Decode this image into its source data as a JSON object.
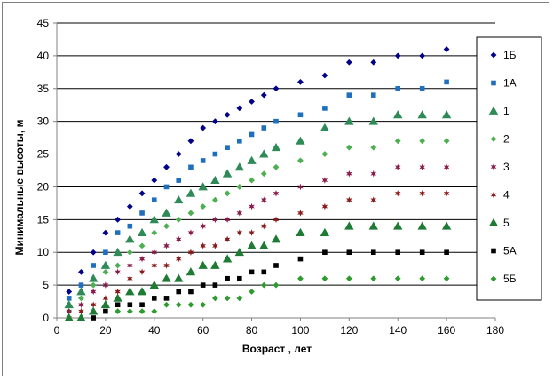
{
  "chart_data": {
    "type": "scatter",
    "xlabel": "Возраст , лет",
    "ylabel": "Минимальные высоты, м",
    "xlim": [
      0,
      180
    ],
    "ylim": [
      0,
      45
    ],
    "x_ticks": [
      0,
      20,
      40,
      60,
      80,
      100,
      120,
      140,
      160,
      180
    ],
    "y_ticks": [
      0,
      5,
      10,
      15,
      20,
      25,
      30,
      35,
      40,
      45
    ],
    "grid": "horizontal",
    "legend_position": "right",
    "series": [
      {
        "name": "1Б",
        "color": "#00008b",
        "marker": "diamond",
        "x": [
          5,
          10,
          15,
          20,
          25,
          30,
          35,
          40,
          45,
          50,
          55,
          60,
          65,
          70,
          75,
          80,
          85,
          90,
          100,
          110,
          120,
          130,
          140,
          150,
          160
        ],
        "y": [
          4,
          7,
          10,
          13,
          15,
          17,
          19,
          21,
          23,
          25,
          27,
          29,
          30,
          31,
          32,
          33,
          34,
          35,
          36,
          37,
          39,
          39,
          40,
          40,
          41
        ]
      },
      {
        "name": "1А",
        "color": "#1f6fbf",
        "marker": "square",
        "x": [
          5,
          10,
          15,
          20,
          25,
          30,
          35,
          40,
          45,
          50,
          55,
          60,
          65,
          70,
          75,
          80,
          85,
          90,
          100,
          110,
          120,
          130,
          140,
          150,
          160
        ],
        "y": [
          3,
          5,
          8,
          10,
          13,
          14,
          16,
          18,
          20,
          21,
          23,
          24,
          25,
          26,
          27,
          28,
          29,
          30,
          31,
          32,
          34,
          34,
          35,
          35,
          36
        ]
      },
      {
        "name": "1",
        "color": "#2e8b57",
        "marker": "triangle",
        "x": [
          5,
          10,
          15,
          20,
          25,
          30,
          35,
          40,
          45,
          50,
          55,
          60,
          65,
          70,
          75,
          80,
          85,
          90,
          100,
          110,
          120,
          130,
          140,
          150,
          160
        ],
        "y": [
          2,
          4,
          6,
          8,
          10,
          12,
          13,
          15,
          16,
          18,
          19,
          20,
          21,
          22,
          23,
          24,
          25,
          26,
          27,
          29,
          30,
          30,
          31,
          31,
          31
        ]
      },
      {
        "name": "2",
        "color": "#4caf50",
        "marker": "diamond",
        "x": [
          5,
          10,
          15,
          20,
          25,
          30,
          35,
          40,
          45,
          50,
          55,
          60,
          65,
          70,
          75,
          80,
          85,
          90,
          100,
          110,
          120,
          130,
          140,
          150,
          160
        ],
        "y": [
          1,
          3,
          5,
          7,
          8,
          10,
          11,
          13,
          14,
          15,
          16,
          17,
          18,
          19,
          20,
          21,
          22,
          23,
          24,
          25,
          26,
          26,
          27,
          27,
          27
        ]
      },
      {
        "name": "3",
        "color": "#8b1a4a",
        "marker": "star",
        "x": [
          5,
          10,
          15,
          20,
          25,
          30,
          35,
          40,
          45,
          50,
          55,
          60,
          65,
          70,
          75,
          80,
          85,
          90,
          100,
          110,
          120,
          130,
          140,
          150,
          160
        ],
        "y": [
          1,
          2,
          4,
          5,
          7,
          8,
          9,
          10,
          11,
          12,
          13,
          14,
          15,
          15,
          16,
          17,
          18,
          19,
          20,
          21,
          22,
          22,
          23,
          23,
          23
        ]
      },
      {
        "name": "4",
        "color": "#8b1a1a",
        "marker": "star",
        "x": [
          5,
          10,
          15,
          20,
          25,
          30,
          35,
          40,
          45,
          50,
          55,
          60,
          65,
          70,
          75,
          80,
          85,
          90,
          100,
          110,
          120,
          130,
          140,
          150,
          160
        ],
        "y": [
          0,
          1,
          2,
          3,
          4,
          6,
          7,
          8,
          8,
          9,
          10,
          11,
          11,
          12,
          13,
          13,
          14,
          15,
          16,
          17,
          18,
          18,
          19,
          19,
          19
        ]
      },
      {
        "name": "5",
        "color": "#1e7b34",
        "marker": "triangle",
        "x": [
          5,
          10,
          15,
          20,
          25,
          30,
          35,
          40,
          45,
          50,
          55,
          60,
          65,
          70,
          75,
          80,
          85,
          90,
          100,
          110,
          120,
          130,
          140,
          150,
          160
        ],
        "y": [
          0,
          0,
          1,
          2,
          3,
          4,
          4,
          5,
          6,
          6,
          7,
          8,
          8,
          9,
          10,
          11,
          11,
          12,
          13,
          13,
          14,
          14,
          14,
          14,
          14
        ]
      },
      {
        "name": "5А",
        "color": "#000000",
        "marker": "square",
        "x": [
          15,
          20,
          25,
          30,
          35,
          40,
          45,
          50,
          55,
          60,
          65,
          70,
          75,
          80,
          85,
          90,
          100,
          110,
          120,
          130,
          140,
          150,
          160
        ],
        "y": [
          0,
          1,
          2,
          2,
          2,
          3,
          3,
          4,
          4,
          5,
          5,
          6,
          6,
          7,
          7,
          8,
          9,
          10,
          10,
          10,
          10,
          10,
          10
        ]
      },
      {
        "name": "5Б",
        "color": "#2e9b2e",
        "marker": "diamond",
        "x": [
          25,
          30,
          35,
          40,
          45,
          50,
          55,
          60,
          65,
          70,
          75,
          80,
          85,
          90,
          100,
          110,
          120,
          130,
          140,
          150,
          160
        ],
        "y": [
          1,
          1,
          1,
          1,
          2,
          2,
          2,
          2,
          3,
          3,
          3,
          4,
          5,
          5,
          6,
          6,
          6,
          6,
          6,
          6,
          6
        ]
      }
    ]
  }
}
